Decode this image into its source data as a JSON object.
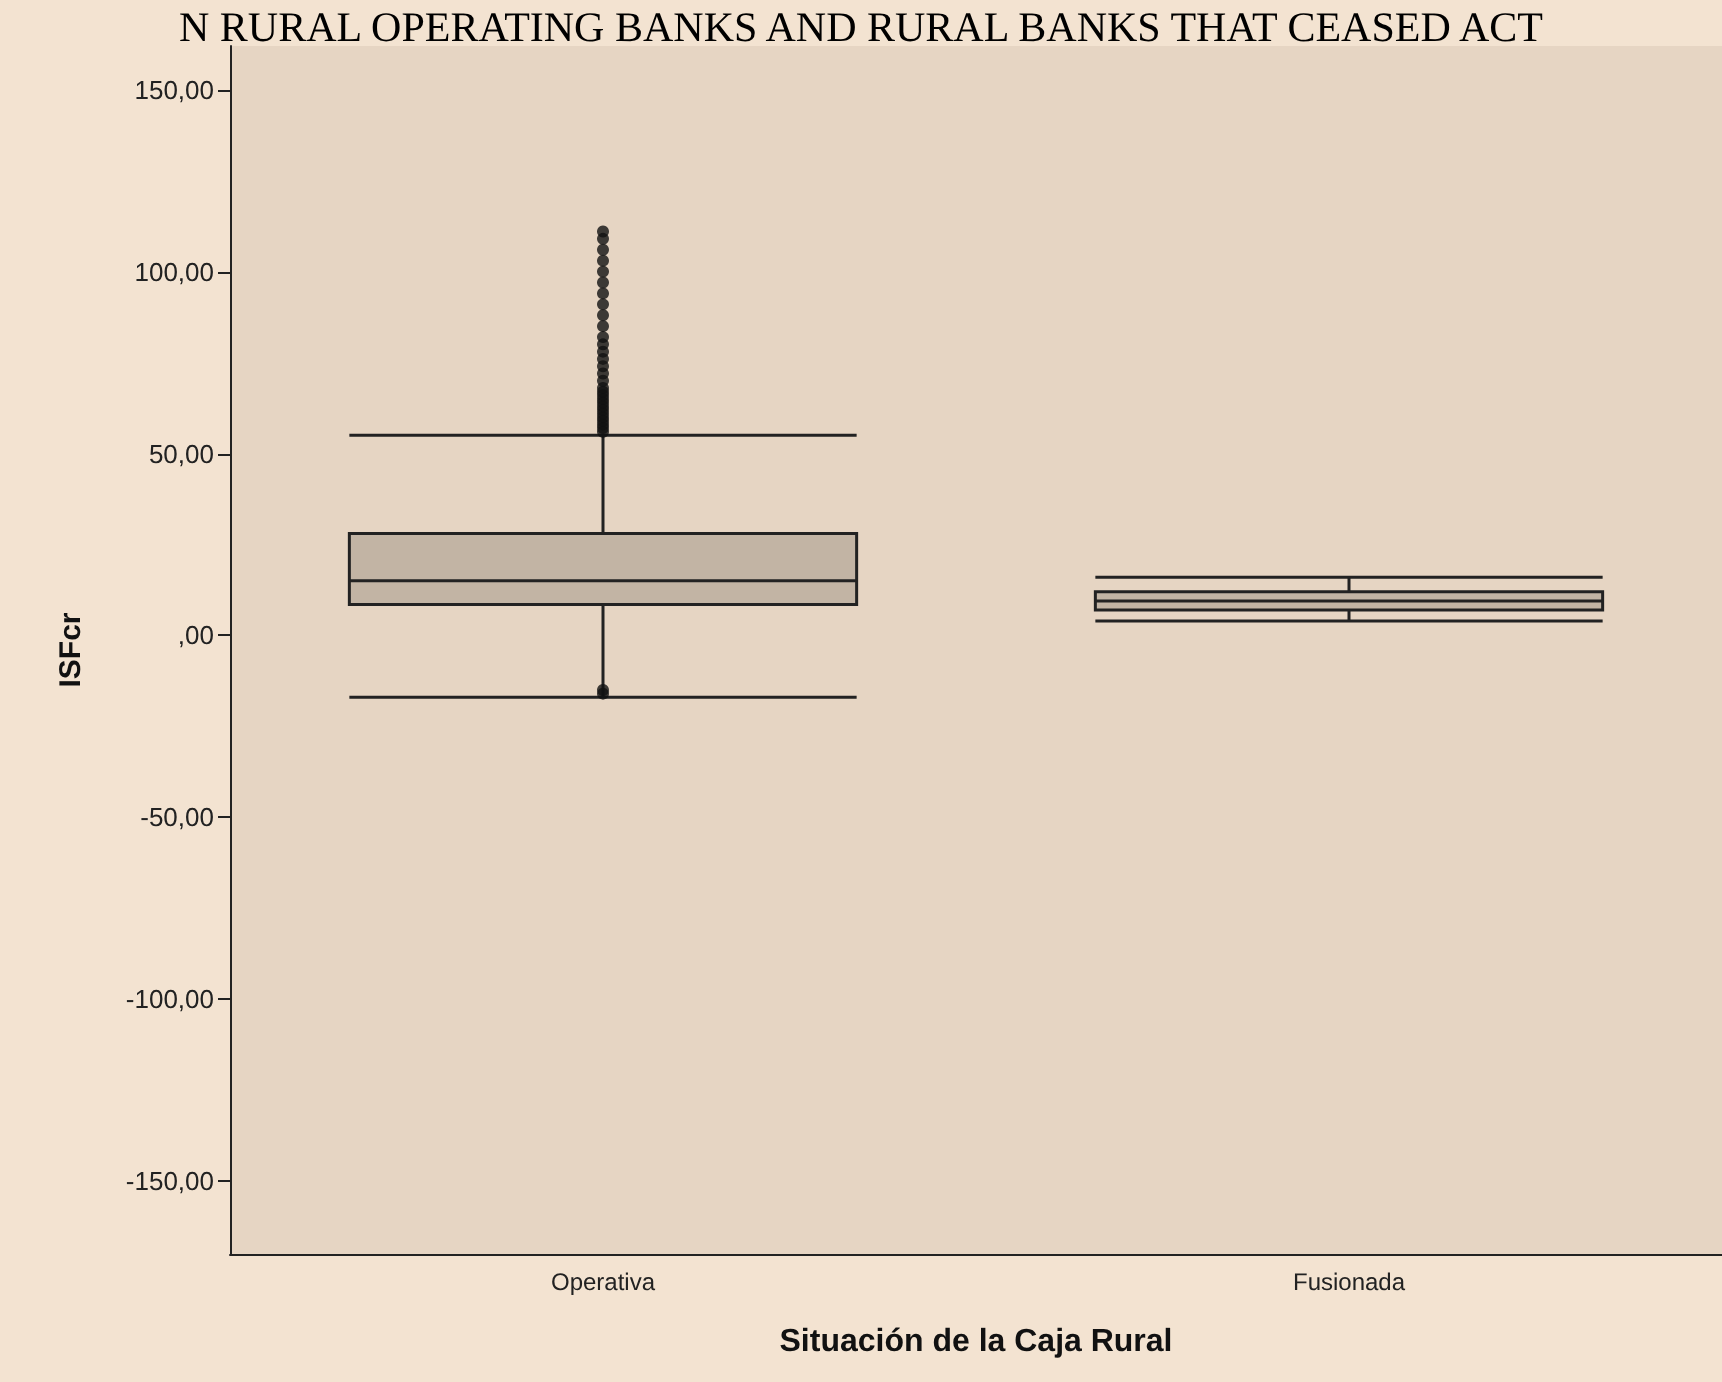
{
  "chart_data": {
    "type": "box",
    "title": "N RURAL OPERATING BANKS AND RURAL BANKS THAT CEASED ACT",
    "xlabel": "Situación de la Caja Rural",
    "ylabel": "ISFcr",
    "categories": [
      "Operativa",
      "Fusionada"
    ],
    "boxes": [
      {
        "low": -17,
        "q1": 8.5,
        "median": 15,
        "q3": 28,
        "high": 55,
        "outliers": [
          -16,
          -15,
          56,
          57,
          58,
          59,
          60,
          61,
          62,
          63,
          64,
          65,
          66,
          67,
          68,
          70,
          72,
          74,
          76,
          78,
          80,
          82,
          85,
          88,
          91,
          94,
          97,
          100,
          103,
          106,
          109,
          111
        ]
      },
      {
        "low": 4,
        "q1": 7,
        "median": 9.5,
        "q3": 12,
        "high": 16
      }
    ],
    "color": "#c2b4a4",
    "ylim": [
      -170,
      162
    ],
    "yticks": [
      {
        "value": -150,
        "label": "-150,00"
      },
      {
        "value": -100,
        "label": "-100,00"
      },
      {
        "value": -50,
        "label": "-50,00"
      },
      {
        "value": 0,
        "label": ",00"
      },
      {
        "value": 50,
        "label": "50,00"
      },
      {
        "value": 100,
        "label": "100,00"
      },
      {
        "value": 150,
        "label": "150,00"
      }
    ],
    "grid": false,
    "legend": false
  }
}
